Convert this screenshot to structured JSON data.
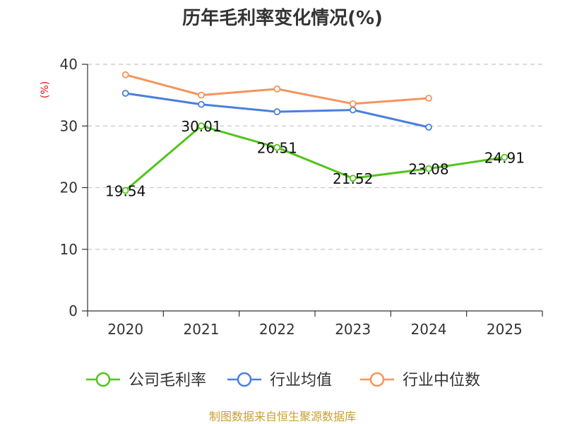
{
  "chart_data": {
    "type": "line",
    "title": "历年毛利率变化情况(%)",
    "xlabel": "",
    "ylabel": "(%)",
    "categories": [
      "2020",
      "2021",
      "2022",
      "2023",
      "2024",
      "2025"
    ],
    "ylim": [
      0,
      40
    ],
    "yticks": [
      0,
      10,
      20,
      30,
      40
    ],
    "grid": true,
    "legend_position": "bottom",
    "series": [
      {
        "name": "公司毛利率",
        "color": "#52c41a",
        "values": [
          19.54,
          30.01,
          26.51,
          21.52,
          23.08,
          24.91
        ],
        "labels": [
          "19.54",
          "30.01",
          "26.51",
          "21.52",
          "23.08",
          "24.91"
        ]
      },
      {
        "name": "行业均值",
        "color": "#4a7fdc",
        "values": [
          35.3,
          33.5,
          32.3,
          32.6,
          29.8,
          null
        ]
      },
      {
        "name": "行业中位数",
        "color": "#f5945a",
        "values": [
          38.3,
          35.0,
          36.0,
          33.6,
          34.5,
          null
        ]
      }
    ]
  },
  "source": "制图数据来自恒生聚源数据库"
}
